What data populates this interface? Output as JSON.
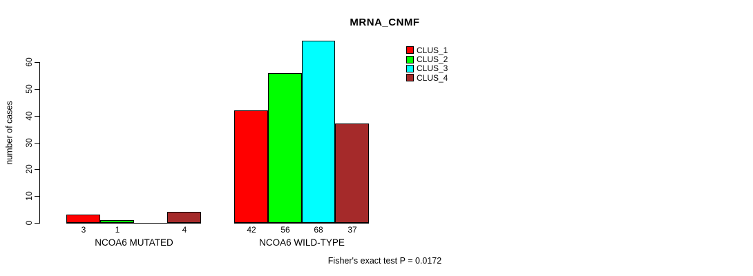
{
  "chart_data": {
    "type": "bar",
    "title": "MRNA_CNMF",
    "ylabel": "number of cases",
    "xlabel": "",
    "categories": [
      "NCOA6 MUTATED",
      "NCOA6 WILD-TYPE"
    ],
    "series": [
      {
        "name": "CLUS_1",
        "color": "#FF0000",
        "values": [
          3,
          42
        ]
      },
      {
        "name": "CLUS_2",
        "color": "#00FF00",
        "values": [
          1,
          56
        ]
      },
      {
        "name": "CLUS_3",
        "color": "#00FFFF",
        "values": [
          0,
          68
        ]
      },
      {
        "name": "CLUS_4",
        "color": "#A52A2A",
        "values": [
          4,
          37
        ]
      }
    ],
    "yticks": [
      0,
      10,
      20,
      30,
      40,
      50,
      60
    ],
    "ylim": [
      0,
      68
    ],
    "grid": false,
    "legend_position": "top-right",
    "annotation": "Fisher's exact test P = 0.0172"
  }
}
